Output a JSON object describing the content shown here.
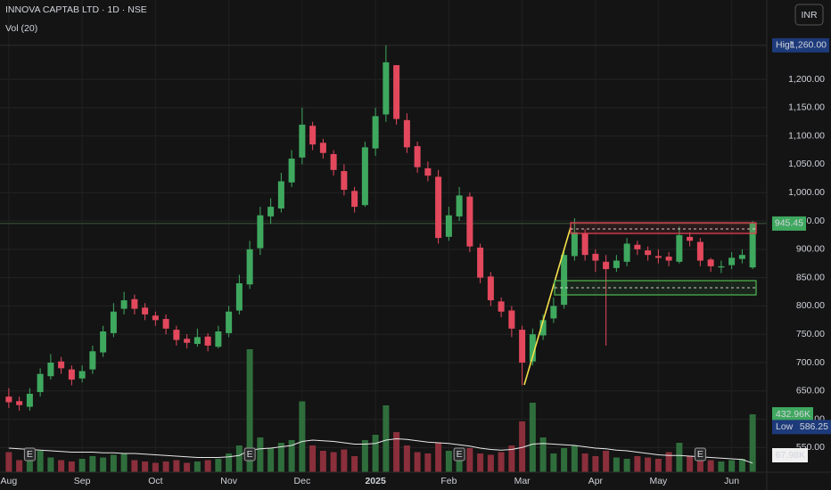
{
  "chart_data": {
    "type": "candlestick",
    "title": "INNOVA CAPTAB LTD · 1D · NSE",
    "currency": "INR",
    "categories": [
      "Aug",
      null,
      null,
      null,
      null,
      null,
      null,
      "Sep",
      null,
      null,
      null,
      null,
      null,
      null,
      "Oct",
      null,
      null,
      null,
      null,
      null,
      null,
      "Nov",
      null,
      null,
      null,
      null,
      null,
      null,
      "Dec",
      null,
      null,
      null,
      null,
      null,
      null,
      "2025",
      null,
      null,
      null,
      null,
      null,
      null,
      "Feb",
      null,
      null,
      null,
      null,
      null,
      null,
      "Mar",
      null,
      null,
      null,
      null,
      null,
      null,
      "Apr",
      null,
      null,
      null,
      null,
      null,
      "May",
      null,
      null,
      null,
      null,
      null,
      null,
      "Jun",
      null,
      null
    ],
    "open": [
      640,
      632,
      622,
      648,
      676,
      702,
      688,
      672,
      688,
      718,
      752,
      795,
      812,
      797,
      783,
      777,
      758,
      742,
      733,
      746,
      728,
      752,
      792,
      838,
      902,
      958,
      972,
      1018,
      1062,
      1118,
      1088,
      1068,
      1038,
      1003,
      978,
      1078,
      1138,
      1225,
      1128,
      1082,
      1043,
      1028,
      922,
      958,
      993,
      903,
      852,
      808,
      792,
      758,
      702,
      748,
      778,
      802,
      888,
      928,
      892,
      878,
      867,
      878,
      908,
      898,
      888,
      887,
      878,
      922,
      913,
      882,
      868,
      872,
      883,
      868
    ],
    "high": [
      655,
      640,
      655,
      690,
      715,
      710,
      695,
      695,
      730,
      765,
      805,
      825,
      820,
      805,
      790,
      785,
      765,
      750,
      760,
      752,
      765,
      800,
      855,
      915,
      975,
      990,
      1035,
      1075,
      1150,
      1125,
      1095,
      1075,
      1050,
      1010,
      1090,
      1150,
      1260,
      1225,
      1140,
      1090,
      1055,
      1040,
      975,
      1010,
      1000,
      910,
      860,
      815,
      800,
      765,
      760,
      785,
      815,
      900,
      955,
      935,
      900,
      890,
      890,
      920,
      915,
      905,
      900,
      895,
      940,
      930,
      920,
      885,
      880,
      895,
      900,
      950
    ],
    "low": [
      620,
      615,
      615,
      640,
      670,
      680,
      660,
      665,
      680,
      710,
      745,
      785,
      785,
      775,
      765,
      750,
      730,
      725,
      728,
      720,
      725,
      745,
      785,
      830,
      890,
      945,
      965,
      1010,
      1050,
      1075,
      1060,
      1030,
      995,
      965,
      975,
      1065,
      1125,
      1120,
      1070,
      1035,
      1020,
      910,
      915,
      950,
      895,
      840,
      800,
      780,
      745,
      660,
      695,
      740,
      770,
      795,
      880,
      880,
      860,
      730,
      860,
      870,
      890,
      880,
      875,
      870,
      875,
      905,
      870,
      860,
      858,
      865,
      875,
      865
    ],
    "close": [
      630,
      625,
      645,
      680,
      700,
      690,
      670,
      685,
      720,
      755,
      790,
      810,
      795,
      785,
      775,
      760,
      740,
      735,
      745,
      730,
      755,
      790,
      840,
      900,
      960,
      975,
      1020,
      1060,
      1120,
      1085,
      1070,
      1040,
      1005,
      975,
      1080,
      1135,
      1230,
      1130,
      1080,
      1045,
      1030,
      920,
      960,
      995,
      905,
      850,
      810,
      790,
      760,
      700,
      750,
      775,
      800,
      890,
      930,
      890,
      880,
      865,
      880,
      910,
      900,
      890,
      885,
      880,
      925,
      915,
      880,
      870,
      870,
      885,
      890,
      945.45
    ],
    "volume": {
      "name": "Vol (20)",
      "values": [
        150,
        90,
        120,
        160,
        110,
        90,
        80,
        100,
        120,
        110,
        130,
        140,
        90,
        80,
        70,
        80,
        90,
        70,
        80,
        90,
        100,
        140,
        200,
        920,
        260,
        180,
        220,
        240,
        530,
        200,
        160,
        150,
        170,
        120,
        240,
        280,
        500,
        300,
        200,
        150,
        140,
        220,
        160,
        150,
        180,
        140,
        130,
        150,
        200,
        380,
        520,
        260,
        140,
        180,
        200,
        140,
        120,
        160,
        110,
        100,
        120,
        110,
        100,
        150,
        220,
        120,
        110,
        90,
        80,
        90,
        100,
        432.96
      ],
      "value_labels": [
        null,
        null,
        null,
        null,
        null,
        null,
        null,
        null,
        null,
        null,
        null,
        null,
        null,
        null,
        null,
        null,
        null,
        null,
        null,
        null,
        null,
        null,
        null,
        null,
        null,
        null,
        null,
        null,
        null,
        null,
        null,
        null,
        null,
        null,
        null,
        null,
        null,
        null,
        null,
        null,
        null,
        null,
        null,
        null,
        null,
        null,
        null,
        null,
        null,
        null,
        null,
        null,
        null,
        null,
        null,
        null,
        null,
        null,
        null,
        null,
        null,
        null,
        null,
        null,
        null,
        null,
        null,
        null,
        null,
        null,
        null,
        "432.96K"
      ]
    },
    "volume_ma": {
      "values": [
        180,
        175,
        170,
        165,
        160,
        155,
        150,
        150,
        150,
        145,
        145,
        140,
        140,
        135,
        130,
        125,
        120,
        115,
        110,
        110,
        110,
        115,
        125,
        165,
        175,
        180,
        190,
        200,
        230,
        240,
        235,
        230,
        220,
        210,
        210,
        215,
        240,
        250,
        245,
        235,
        225,
        220,
        215,
        205,
        195,
        180,
        170,
        165,
        170,
        185,
        210,
        215,
        210,
        205,
        200,
        190,
        180,
        175,
        165,
        160,
        150,
        140,
        130,
        125,
        125,
        120,
        115,
        110,
        105,
        100,
        95,
        67.98
      ],
      "value_labels": [
        null,
        null,
        null,
        null,
        null,
        null,
        null,
        null,
        null,
        null,
        null,
        null,
        null,
        null,
        null,
        null,
        null,
        null,
        null,
        null,
        null,
        null,
        null,
        null,
        null,
        null,
        null,
        null,
        null,
        null,
        null,
        null,
        null,
        null,
        null,
        null,
        null,
        null,
        null,
        null,
        null,
        null,
        null,
        null,
        null,
        null,
        null,
        null,
        null,
        null,
        null,
        null,
        null,
        null,
        null,
        null,
        null,
        null,
        null,
        null,
        null,
        null,
        null,
        null,
        null,
        null,
        null,
        null,
        null,
        null,
        null,
        "67.98K"
      ]
    },
    "high_badge": {
      "name": "High",
      "value": 1260,
      "label": "1,260.00"
    },
    "low_badge": {
      "name": "Low",
      "value": 586.25
    },
    "events": [
      {
        "label": "E",
        "index": 2
      },
      {
        "label": "E",
        "index": 23
      },
      {
        "label": "E",
        "index": 43
      },
      {
        "label": "E",
        "index": 66
      }
    ],
    "ylim": [
      506.6,
      1340
    ],
    "yticks": [
      {
        "value": 550,
        "label": "550.00"
      },
      {
        "value": 600,
        "label": "600.00"
      },
      {
        "value": 650,
        "label": "650.00"
      },
      {
        "value": 700,
        "label": "700.00"
      },
      {
        "value": 750,
        "label": "750.00"
      },
      {
        "value": 800,
        "label": "800.00"
      },
      {
        "value": 850,
        "label": "850.00"
      },
      {
        "value": 900,
        "label": "900.00"
      },
      {
        "value": 950,
        "label": "950.00"
      },
      {
        "value": 1000,
        "label": "1,000.00"
      },
      {
        "value": 1050,
        "label": "1,050.00"
      },
      {
        "value": 1100,
        "label": "1,100.00"
      },
      {
        "value": 1150,
        "label": "1,150.00"
      },
      {
        "value": 1200,
        "label": "1,200.00"
      }
    ],
    "grid": true,
    "up_color": "#3fa85f",
    "down_color": "#e3485d",
    "volume_up_color": "#2f6e3c",
    "volume_down_color": "#8a2f3b"
  }
}
